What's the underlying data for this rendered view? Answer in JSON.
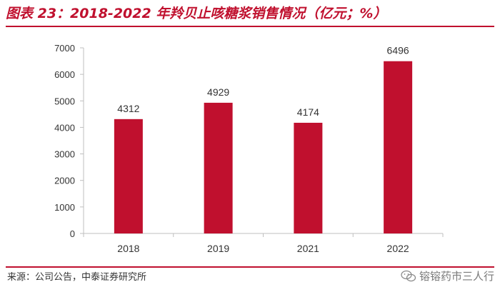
{
  "title": "图表 23：2018-2022 年羚贝止咳糖浆销售情况（亿元；%）",
  "source": "来源：公司公告，中泰证券研究所",
  "watermark": "镕镕药市三人行",
  "colors": {
    "accent": "#c0102e",
    "bar": "#c0102e",
    "axis": "#bfbfbf",
    "text": "#333333"
  },
  "chart_data": {
    "type": "bar",
    "categories": [
      "2018",
      "2019",
      "2021",
      "2022"
    ],
    "values": [
      4312,
      4929,
      4174,
      6496
    ],
    "data_labels": [
      "4312",
      "4929",
      "4174",
      "6496"
    ],
    "yticks": [
      "0",
      "1000",
      "2000",
      "3000",
      "4000",
      "5000",
      "6000",
      "7000"
    ],
    "ylim": [
      0,
      7000
    ],
    "grid": false,
    "legend": "none"
  }
}
